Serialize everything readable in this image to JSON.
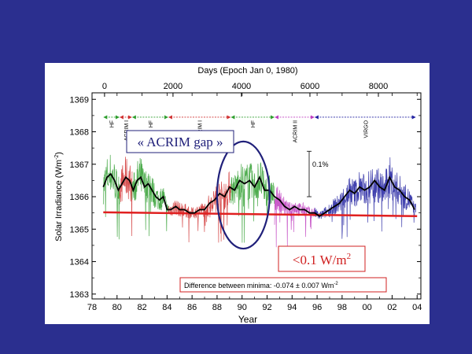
{
  "slide": {
    "background": "#2b2f8f"
  },
  "chart_data": {
    "type": "line",
    "top_axis": {
      "label": "Days (Epoch Jan 0, 1980)",
      "ticks": [
        "0",
        "2000",
        "4000",
        "6000",
        "8000"
      ],
      "tick_days": [
        0,
        2000,
        4000,
        6000,
        8000
      ]
    },
    "x_axis": {
      "label": "Year",
      "ticks": [
        "78",
        "80",
        "82",
        "84",
        "86",
        "88",
        "90",
        "92",
        "94",
        "96",
        "98",
        "00",
        "02",
        "04"
      ],
      "tick_years": [
        1978,
        1980,
        1982,
        1984,
        1986,
        1988,
        1990,
        1992,
        1994,
        1996,
        1998,
        2000,
        2002,
        2004
      ],
      "range": [
        1978,
        2004.3
      ]
    },
    "y_axis": {
      "label": "Solar Irradiance (Wm",
      "label_sup": "-2",
      "label_suffix": ")",
      "ticks": [
        "1363",
        "1364",
        "1365",
        "1366",
        "1367",
        "1368",
        "1369"
      ],
      "tick_values": [
        1363,
        1364,
        1365,
        1366,
        1367,
        1368,
        1369
      ],
      "range": [
        1362.85,
        1369.2
      ]
    },
    "instruments": [
      {
        "name": "HF",
        "start": 1978.9,
        "end": 1980.2,
        "color": "#2e9e2e"
      },
      {
        "name": "ACRIM I",
        "start": 1980.2,
        "end": 1981.2,
        "color": "#d03030"
      },
      {
        "name": "HF",
        "start": 1981.2,
        "end": 1984.1,
        "color": "#2e9e2e"
      },
      {
        "name": "ACRIM I",
        "start": 1984.1,
        "end": 1989.1,
        "color": "#d03030"
      },
      {
        "name": "HF",
        "start": 1989.1,
        "end": 1992.6,
        "color": "#2e9e2e"
      },
      {
        "name": "ACRIM II",
        "start": 1992.6,
        "end": 1995.8,
        "color": "#c040c0"
      },
      {
        "name": "VIRGO",
        "start": 1995.8,
        "end": 2003.9,
        "color": "#2020a0"
      }
    ],
    "series": [
      {
        "color": "#000000",
        "x": [
          1978.9,
          1979.2,
          1979.5,
          1979.8,
          1980.1,
          1980.4,
          1980.7,
          1981.0,
          1981.3,
          1981.6,
          1981.9,
          1982.2,
          1982.5,
          1982.8,
          1983.1,
          1983.4,
          1983.7,
          1984.0,
          1984.3,
          1984.7,
          1985.0,
          1985.4,
          1985.8,
          1986.2,
          1986.6,
          1987.0,
          1987.4,
          1987.8,
          1988.2,
          1988.6,
          1989.0,
          1989.4,
          1989.8,
          1990.2,
          1990.6,
          1991.0,
          1991.4,
          1991.8,
          1992.2,
          1992.6,
          1993.0,
          1993.4,
          1993.8,
          1994.2,
          1994.6,
          1995.0,
          1995.4,
          1995.8,
          1996.2,
          1996.6,
          1997.0,
          1997.4,
          1997.8,
          1998.2,
          1998.6,
          1999.0,
          1999.4,
          1999.8,
          2000.2,
          2000.6,
          2001.0,
          2001.4,
          2001.8,
          2002.2,
          2002.6,
          2003.0,
          2003.4,
          2003.8
        ],
        "y": [
          1366.3,
          1366.6,
          1366.7,
          1366.5,
          1366.2,
          1366.4,
          1366.6,
          1366.5,
          1366.2,
          1366.5,
          1366.6,
          1366.3,
          1366.4,
          1366.2,
          1366.0,
          1365.9,
          1366.0,
          1365.6,
          1365.6,
          1365.7,
          1365.6,
          1365.6,
          1365.5,
          1365.5,
          1365.6,
          1365.6,
          1365.8,
          1365.9,
          1366.1,
          1366.0,
          1366.3,
          1366.2,
          1366.5,
          1366.4,
          1366.5,
          1366.3,
          1366.6,
          1366.2,
          1366.2,
          1366.0,
          1365.9,
          1365.7,
          1365.6,
          1365.7,
          1365.6,
          1365.6,
          1365.5,
          1365.5,
          1365.4,
          1365.5,
          1365.6,
          1365.7,
          1365.8,
          1366.0,
          1366.2,
          1366.1,
          1366.3,
          1366.2,
          1366.3,
          1366.5,
          1366.3,
          1366.2,
          1366.6,
          1366.3,
          1366.2,
          1366.0,
          1365.9,
          1365.6
        ]
      }
    ],
    "trend_line": {
      "x": [
        1978.9,
        2004.0
      ],
      "y": [
        1365.52,
        1365.4
      ],
      "color": "#e02020"
    },
    "scale_bar": {
      "label": "0.1%",
      "from": 1366.0,
      "to": 1367.4
    },
    "ellipse": {
      "center_x": 1990.1,
      "center_y": 1366.05,
      "rx_years": 2.1,
      "ry_wm2": 1.65,
      "color": "#20207a"
    },
    "annotations": {
      "acrim_gap": "« ACRIM gap »",
      "minimum_change_prefix": "<0.1 W/m",
      "minimum_change_sup": "2",
      "difference": "Difference between minima: -0.074 ± 0.007 Wm",
      "difference_sup": "-2"
    },
    "grid": false
  }
}
